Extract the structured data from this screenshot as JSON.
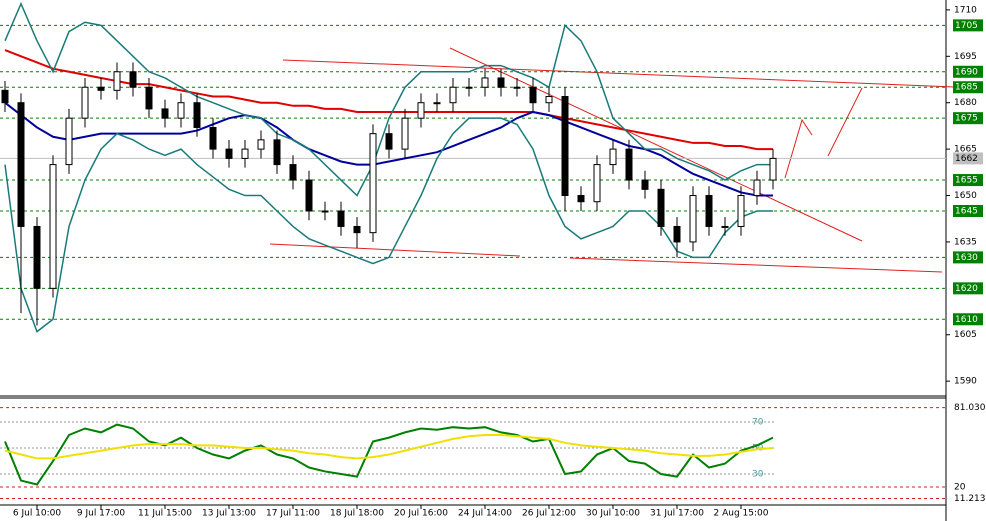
{
  "chart_data": {
    "type": "candlestick",
    "categories": [
      null,
      null,
      "6 Jul 10:00",
      null,
      null,
      null,
      "9 Jul 17:00",
      null,
      null,
      null,
      "11 Jul 15:00",
      null,
      null,
      null,
      "13 Jul 13:00",
      null,
      null,
      null,
      "17 Jul 11:00",
      null,
      null,
      null,
      "18 Jul 18:00",
      null,
      null,
      null,
      "20 Jul 16:00",
      null,
      null,
      null,
      "24 Jul 14:00",
      null,
      null,
      null,
      "26 Jul 12:00",
      null,
      null,
      null,
      "30 Jul 10:00",
      null,
      null,
      null,
      "31 Jul 17:00",
      null,
      null,
      null,
      "2 Aug 15:00",
      null,
      null
    ],
    "open": [
      1684,
      1680,
      1640,
      1620,
      1660,
      1675,
      1685,
      1684,
      1690,
      1685,
      1678,
      1675,
      1680,
      1672,
      1665,
      1662,
      1665,
      1668,
      1660,
      1655,
      1645,
      1645,
      1640,
      1638,
      1670,
      1665,
      1675,
      1680,
      1680,
      1685,
      1685,
      1688,
      1685,
      1685,
      1680,
      1682,
      1650,
      1648,
      1660,
      1665,
      1655,
      1652,
      1640,
      1635,
      1650,
      1640,
      1640,
      1650,
      1655
    ],
    "high": [
      1687,
      1683,
      1643,
      1663,
      1678,
      1688,
      1688,
      1693,
      1693,
      1688,
      1681,
      1683,
      1683,
      1675,
      1668,
      1668,
      1671,
      1671,
      1663,
      1658,
      1648,
      1648,
      1643,
      1673,
      1673,
      1678,
      1683,
      1683,
      1688,
      1688,
      1691,
      1691,
      1688,
      1688,
      1685,
      1685,
      1653,
      1663,
      1668,
      1668,
      1658,
      1655,
      1643,
      1653,
      1653,
      1643,
      1653,
      1658,
      1665
    ],
    "low": [
      1677,
      1612,
      1608,
      1617,
      1657,
      1672,
      1681,
      1681,
      1682,
      1675,
      1672,
      1672,
      1669,
      1662,
      1659,
      1659,
      1662,
      1657,
      1652,
      1642,
      1642,
      1637,
      1633,
      1635,
      1662,
      1662,
      1672,
      1677,
      1677,
      1682,
      1682,
      1682,
      1682,
      1677,
      1677,
      1645,
      1645,
      1645,
      1657,
      1652,
      1649,
      1637,
      1630,
      1632,
      1637,
      1637,
      1637,
      1647,
      1652
    ],
    "close": [
      1680,
      1640,
      1620,
      1660,
      1675,
      1685,
      1684,
      1690,
      1685,
      1678,
      1675,
      1680,
      1672,
      1665,
      1662,
      1665,
      1668,
      1660,
      1655,
      1645,
      1645,
      1640,
      1638,
      1670,
      1665,
      1675,
      1680,
      1680,
      1685,
      1685,
      1688,
      1685,
      1685,
      1680,
      1682,
      1650,
      1648,
      1660,
      1665,
      1655,
      1652,
      1640,
      1635,
      1650,
      1640,
      1640,
      1650,
      1655,
      1662
    ],
    "candle_color": "#000000",
    "series": [
      {
        "color": "#e00000",
        "values": [
          1697,
          1695,
          1693,
          1691,
          1690,
          1689,
          1688,
          1687,
          1686,
          1686,
          1685,
          1684,
          1683,
          1682,
          1682,
          1681,
          1680,
          1680,
          1679,
          1679,
          1678,
          1678,
          1677,
          1677,
          1677,
          1677,
          1677,
          1677,
          1677,
          1677,
          1677,
          1677,
          1677,
          1677,
          1676,
          1675,
          1674,
          1673,
          1672,
          1671,
          1670,
          1669,
          1668,
          1667,
          1667,
          1666,
          1666,
          1665,
          1665
        ]
      },
      {
        "color": "#00009c",
        "values": [
          1680,
          1676,
          1672,
          1669,
          1668,
          1669,
          1670,
          1670,
          1670,
          1670,
          1670,
          1670,
          1671,
          1673,
          1675,
          1676,
          1675,
          1672,
          1668,
          1665,
          1663,
          1661,
          1660,
          1660,
          1661,
          1662,
          1663,
          1664,
          1666,
          1668,
          1670,
          1672,
          1675,
          1677,
          1676,
          1674,
          1672,
          1670,
          1668,
          1666,
          1665,
          1663,
          1660,
          1657,
          1655,
          1653,
          1651,
          1650,
          1650
        ]
      },
      {
        "color": "#1a7a7a",
        "values": [
          1700,
          1712,
          1700,
          1690,
          1703,
          1706,
          1705,
          1700,
          1695,
          1690,
          1688,
          1685,
          1682,
          1680,
          1678,
          1676,
          1675,
          1670,
          1668,
          1665,
          1660,
          1655,
          1650,
          1660,
          1675,
          1685,
          1690,
          1690,
          1690,
          1690,
          1692,
          1692,
          1690,
          1688,
          1685,
          1705,
          1700,
          1690,
          1675,
          1670,
          1665,
          1665,
          1662,
          1660,
          1658,
          1655,
          1658,
          1660,
          1660
        ]
      },
      {
        "color": "#1a7a7a",
        "values": [
          1660,
          1620,
          1606,
          1610,
          1640,
          1655,
          1665,
          1670,
          1668,
          1665,
          1663,
          1665,
          1660,
          1656,
          1652,
          1650,
          1650,
          1645,
          1640,
          1636,
          1634,
          1632,
          1630,
          1628,
          1630,
          1640,
          1650,
          1662,
          1670,
          1675,
          1675,
          1675,
          1673,
          1665,
          1650,
          1640,
          1636,
          1638,
          1640,
          1645,
          1645,
          1640,
          1632,
          1630,
          1630,
          1638,
          1643,
          1645,
          1645
        ]
      },
      {
        "color": "#008000",
        "axis": "y2",
        "values": [
          55,
          25,
          22,
          40,
          60,
          65,
          62,
          68,
          65,
          55,
          52,
          58,
          50,
          45,
          42,
          48,
          52,
          45,
          42,
          35,
          32,
          30,
          28,
          55,
          58,
          62,
          65,
          64,
          66,
          65,
          66,
          62,
          60,
          55,
          57,
          30,
          32,
          45,
          50,
          40,
          38,
          30,
          28,
          45,
          35,
          38,
          48,
          52,
          58
        ]
      },
      {
        "color": "#f0e000",
        "axis": "y2",
        "values": [
          48,
          45,
          42,
          42,
          44,
          46,
          48,
          50,
          52,
          53,
          53,
          53,
          52,
          52,
          51,
          50,
          50,
          49,
          48,
          46,
          45,
          43,
          42,
          43,
          45,
          48,
          51,
          54,
          57,
          59,
          60,
          60,
          59,
          58,
          57,
          54,
          52,
          51,
          50,
          49,
          48,
          46,
          45,
          44,
          44,
          45,
          47,
          49,
          50
        ]
      }
    ],
    "ylim": [
      1585.2,
      1713.2
    ],
    "yticks": [
      1710,
      1695,
      1680,
      1665,
      1650,
      1635,
      1605,
      1590
    ],
    "levels": [
      1705,
      1690,
      1685,
      1675,
      1655,
      1645,
      1630,
      1620,
      1610
    ],
    "level_color": "#008000",
    "last_price": 1662,
    "y2lim": [
      6.2,
      86.9
    ],
    "y2ticks": [
      {
        "value": 81.03,
        "label": "81.030"
      },
      20,
      11.213
    ],
    "rsi_levels": [
      70,
      50,
      30
    ]
  }
}
